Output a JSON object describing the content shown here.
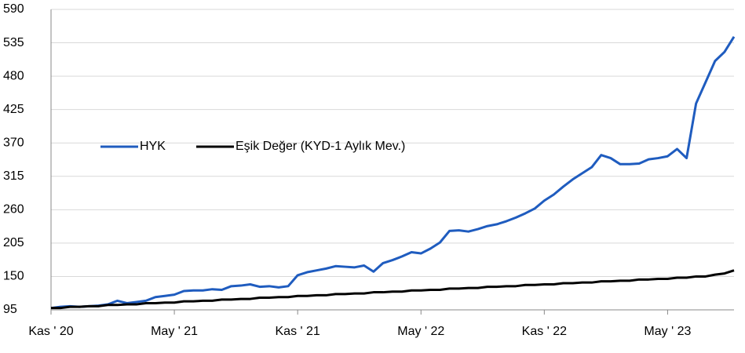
{
  "chart_data": {
    "type": "line",
    "categories": [
      "Kas ' 20",
      null,
      null,
      null,
      null,
      null,
      null,
      null,
      null,
      null,
      null,
      null,
      null,
      "May ' 21",
      null,
      null,
      null,
      null,
      null,
      null,
      null,
      null,
      null,
      null,
      null,
      null,
      "Kas ' 21",
      null,
      null,
      null,
      null,
      null,
      null,
      null,
      null,
      null,
      null,
      null,
      null,
      "May ' 22",
      null,
      null,
      null,
      null,
      null,
      null,
      null,
      null,
      null,
      null,
      null,
      null,
      "Kas ' 22",
      null,
      null,
      null,
      null,
      null,
      null,
      null,
      null,
      null,
      null,
      null,
      null,
      "May ' 23",
      null,
      null,
      null,
      null,
      null,
      null,
      null
    ],
    "series": [
      {
        "name": "HYK",
        "color": "#1f5cbf",
        "values": [
          98,
          100,
          101,
          100,
          101,
          102,
          104,
          110,
          106,
          108,
          110,
          116,
          118,
          120,
          126,
          127,
          127,
          129,
          128,
          134,
          135,
          137,
          133,
          134,
          132,
          134,
          152,
          157,
          160,
          163,
          167,
          166,
          165,
          168,
          158,
          172,
          177,
          183,
          190,
          188,
          196,
          206,
          225,
          226,
          224,
          228,
          233,
          236,
          241,
          247,
          254,
          262,
          275,
          285,
          298,
          310,
          320,
          330,
          350,
          345,
          335,
          335,
          336,
          343,
          345,
          348,
          360,
          345,
          435,
          470,
          505,
          520,
          545
        ]
      },
      {
        "name": "Eşik Değer (KYD-1 Aylık Mev.)",
        "color": "#000000",
        "values": [
          98,
          98,
          100,
          100,
          101,
          101,
          103,
          103,
          104,
          104,
          106,
          106,
          107,
          107,
          109,
          109,
          110,
          110,
          112,
          112,
          113,
          113,
          115,
          115,
          116,
          116,
          118,
          118,
          119,
          119,
          121,
          121,
          122,
          122,
          124,
          124,
          125,
          125,
          127,
          127,
          128,
          128,
          130,
          130,
          131,
          131,
          133,
          133,
          134,
          134,
          136,
          136,
          137,
          137,
          139,
          139,
          140,
          140,
          142,
          142,
          143,
          143,
          145,
          145,
          146,
          146,
          148,
          148,
          150,
          150,
          153,
          155,
          160
        ]
      }
    ],
    "ylim": [
      95,
      590
    ],
    "yticks": [
      95,
      150,
      205,
      260,
      315,
      370,
      425,
      480,
      535,
      590
    ],
    "grid": true,
    "legend": "center-left"
  }
}
